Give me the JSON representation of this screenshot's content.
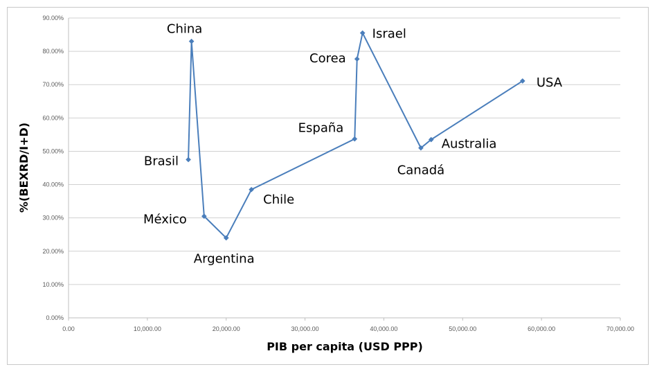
{
  "chart_data": {
    "type": "line",
    "title": "",
    "xlabel": "PIB per capita (USD PPP)",
    "ylabel": "%(BEXRD/I+D)",
    "xlim": [
      0,
      70000
    ],
    "ylim": [
      0,
      0.9
    ],
    "x_ticks": [
      "0.00",
      "10,000.00",
      "20,000.00",
      "30,000.00",
      "40,000.00",
      "50,000.00",
      "60,000.00",
      "70,000.00"
    ],
    "y_ticks": [
      "0.00%",
      "10.00%",
      "20.00%",
      "30.00%",
      "40.00%",
      "50.00%",
      "60.00%",
      "70.00%",
      "80.00%",
      "90.00%"
    ],
    "grid": "horizontal",
    "legend": "none",
    "series_color": "#4a7ebb",
    "points": [
      {
        "label": "Brasil",
        "x": 15200,
        "y": 0.475
      },
      {
        "label": "China",
        "x": 15600,
        "y": 0.83
      },
      {
        "label": "México",
        "x": 17200,
        "y": 0.305
      },
      {
        "label": "Argentina",
        "x": 20000,
        "y": 0.24
      },
      {
        "label": "Chile",
        "x": 23200,
        "y": 0.385
      },
      {
        "label": "España",
        "x": 36300,
        "y": 0.537
      },
      {
        "label": "Corea",
        "x": 36600,
        "y": 0.777
      },
      {
        "label": "Israel",
        "x": 37300,
        "y": 0.855
      },
      {
        "label": "Canadá",
        "x": 44700,
        "y": 0.51
      },
      {
        "label": "Australia",
        "x": 46000,
        "y": 0.535
      },
      {
        "label": "USA",
        "x": 57600,
        "y": 0.711
      }
    ]
  }
}
